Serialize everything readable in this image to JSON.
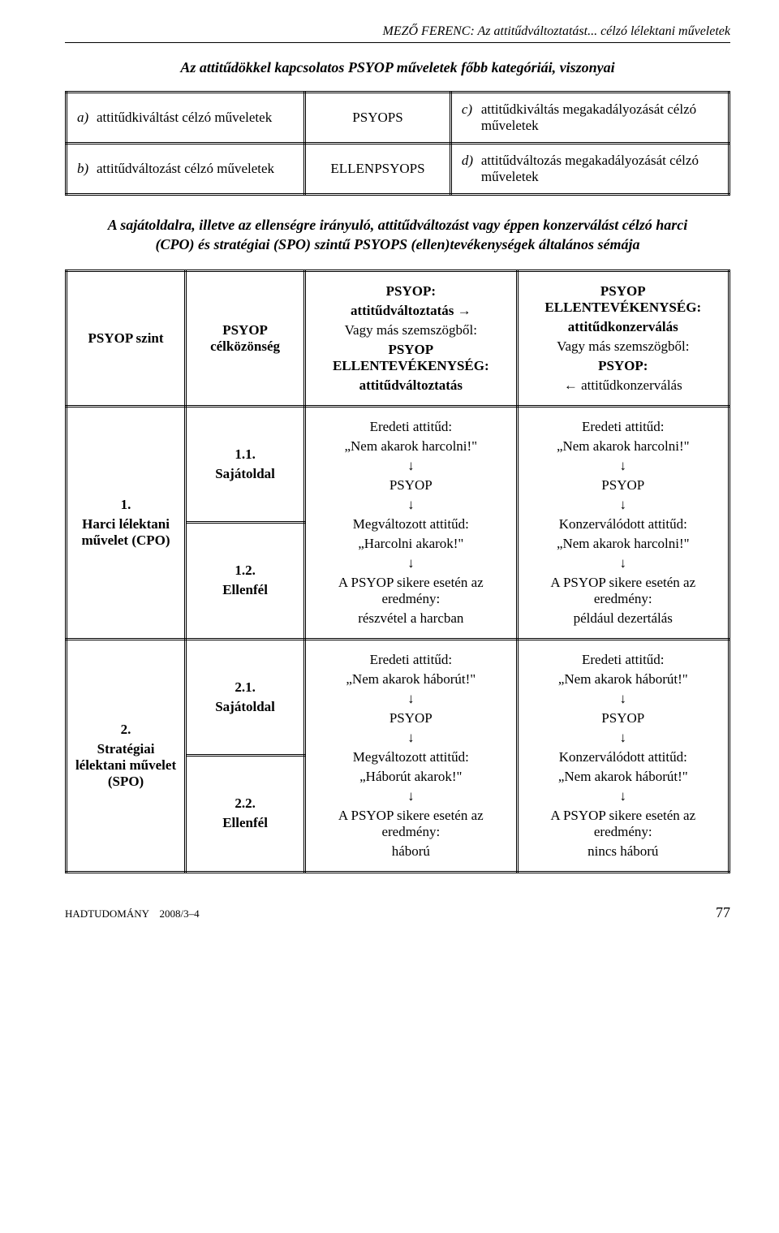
{
  "header": {
    "running_head": "MEZŐ FERENC: Az attitűdváltoztatást... célzó lélektani műveletek"
  },
  "section1": {
    "title": "Az attitűdökkel kapcsolatos PSYOP műveletek főbb kategóriái, viszonyai",
    "rows": [
      {
        "left_letter": "a)",
        "left_text": "attitűdkiváltást célzó műveletek",
        "mid": "PSYOPS",
        "right_letter": "c)",
        "right_text": "attitűdkiváltás megakadályozását célzó műveletek"
      },
      {
        "left_letter": "b)",
        "left_text": "attitűdváltozást célzó műveletek",
        "mid": "ELLENPSYOPS",
        "right_letter": "d)",
        "right_text": "attitűdváltozás megakadályozását célzó műveletek"
      }
    ]
  },
  "section2": {
    "title": "A sajátoldalra, illetve az ellenségre irányuló, attitűdváltozást vagy éppen konzerválást célzó harci (CPO) és stratégiai (SPO) szintű PSYOPS (ellen)tevékenységek általános sémája",
    "header_row": {
      "c1": "PSYOP szint",
      "c2": "PSYOP célközönség",
      "c3_top_bold": "PSYOP:",
      "c3_top_line": "attitűdváltoztatás →",
      "c3_sub_intro": "Vagy más szemszögből:",
      "c3_sub_bold": "PSYOP ELLENTEVÉKENYSÉG:",
      "c3_sub_line": "attitűdváltoztatás",
      "c4_top_bold": "PSYOP ELLENTEVÉKENYSÉG:",
      "c4_top_line": "attitűdkonzerválás",
      "c4_sub_intro": "Vagy más szemszögből:",
      "c4_sub_bold": "PSYOP:",
      "c4_sub_line": "← attitűdkonzerválás"
    },
    "rows": [
      {
        "c1": "1.\nHarci lélektani művelet (CPO)",
        "c2a": "1.1.\nSajátoldal",
        "c2b": "1.2.\nEllenfél",
        "c3": "Eredeti attitűd:\n„Nem akarok harcolni!\"\n↓\nPSYOP\n↓\nMegváltozott attitűd:\n„Harcolni akarok!\"\n↓\nA PSYOP sikere esetén az eredmény:\nrészvétel a harcban",
        "c4": "Eredeti attitűd:\n„Nem akarok harcolni!\"\n↓\nPSYOP\n↓\nKonzerválódott attitűd:\n„Nem akarok harcolni!\"\n↓\nA PSYOP sikere esetén az eredmény:\npéldául dezertálás"
      },
      {
        "c1": "2.\nStratégiai lélektani művelet (SPO)",
        "c2a": "2.1.\nSajátoldal",
        "c2b": "2.2.\nEllenfél",
        "c3": "Eredeti attitűd:\n„Nem akarok háborút!\"\n↓\nPSYOP\n↓\nMegváltozott attitűd:\n„Háborút akarok!\"\n↓\nA PSYOP sikere esetén az eredmény:\nháború",
        "c4": "Eredeti attitűd:\n„Nem akarok háborút!\"\n↓\nPSYOP\n↓\nKonzerválódott attitűd:\n„Nem akarok háborút!\"\n↓\nA PSYOP sikere esetén az eredmény:\nnincs háború"
      }
    ]
  },
  "footer": {
    "journal": "HADTUDOMÁNY",
    "issue": "2008/3–4",
    "page": "77"
  }
}
